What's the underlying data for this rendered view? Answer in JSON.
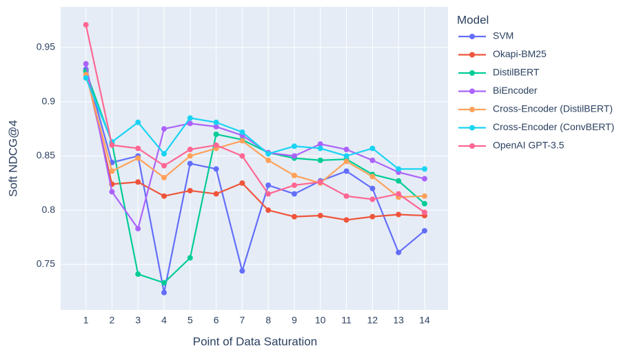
{
  "chart_data": {
    "type": "line",
    "x_label": "Point of Data Saturation",
    "y_label": "Soft NDCG@4",
    "legend_title": "Model",
    "legend_position": "right",
    "grid": true,
    "x": [
      1,
      2,
      3,
      4,
      5,
      6,
      7,
      8,
      9,
      10,
      11,
      12,
      13,
      14
    ],
    "xlim": [
      0.03,
      14.9
    ],
    "xticks": [
      1,
      2,
      3,
      4,
      5,
      6,
      7,
      8,
      9,
      10,
      11,
      12,
      13,
      14
    ],
    "ylim": [
      0.708,
      0.9875
    ],
    "yticks": [
      0.75,
      0.8,
      0.85,
      0.9,
      0.95
    ],
    "series": [
      {
        "name": "SVM",
        "color": "#636efa",
        "values": [
          0.93,
          0.844,
          0.85,
          0.724,
          0.843,
          0.838,
          0.744,
          0.823,
          0.815,
          0.827,
          0.836,
          0.82,
          0.761,
          0.781
        ]
      },
      {
        "name": "Okapi-BM25",
        "color": "#EF553B",
        "values": [
          0.928,
          0.824,
          0.826,
          0.813,
          0.818,
          0.815,
          0.825,
          0.8,
          0.794,
          0.795,
          0.791,
          0.794,
          0.796,
          0.795
        ]
      },
      {
        "name": "DistilBERT",
        "color": "#00cc96",
        "values": [
          0.928,
          0.862,
          0.741,
          0.733,
          0.756,
          0.87,
          0.865,
          0.853,
          0.848,
          0.846,
          0.847,
          0.833,
          0.827,
          0.806
        ]
      },
      {
        "name": "BiEncoder",
        "color": "#ab63fa",
        "values": [
          0.935,
          0.817,
          0.783,
          0.875,
          0.88,
          0.877,
          0.869,
          0.853,
          0.85,
          0.861,
          0.856,
          0.846,
          0.835,
          0.829
        ]
      },
      {
        "name": "Cross-Encoder (DistilBERT)",
        "color": "#FFA15A",
        "values": [
          0.925,
          0.836,
          0.848,
          0.83,
          0.85,
          0.857,
          0.864,
          0.846,
          0.832,
          0.825,
          0.845,
          0.831,
          0.812,
          0.813
        ]
      },
      {
        "name": "Cross-Encoder (ConvBERT)",
        "color": "#19d3f3",
        "values": [
          0.922,
          0.863,
          0.881,
          0.852,
          0.885,
          0.881,
          0.872,
          0.852,
          0.859,
          0.857,
          0.85,
          0.857,
          0.838,
          0.838
        ]
      },
      {
        "name": "OpenAI GPT-3.5",
        "color": "#FF6692",
        "values": [
          0.971,
          0.86,
          0.857,
          0.841,
          0.856,
          0.86,
          0.85,
          0.815,
          0.823,
          0.826,
          0.813,
          0.81,
          0.815,
          0.798
        ]
      }
    ]
  }
}
